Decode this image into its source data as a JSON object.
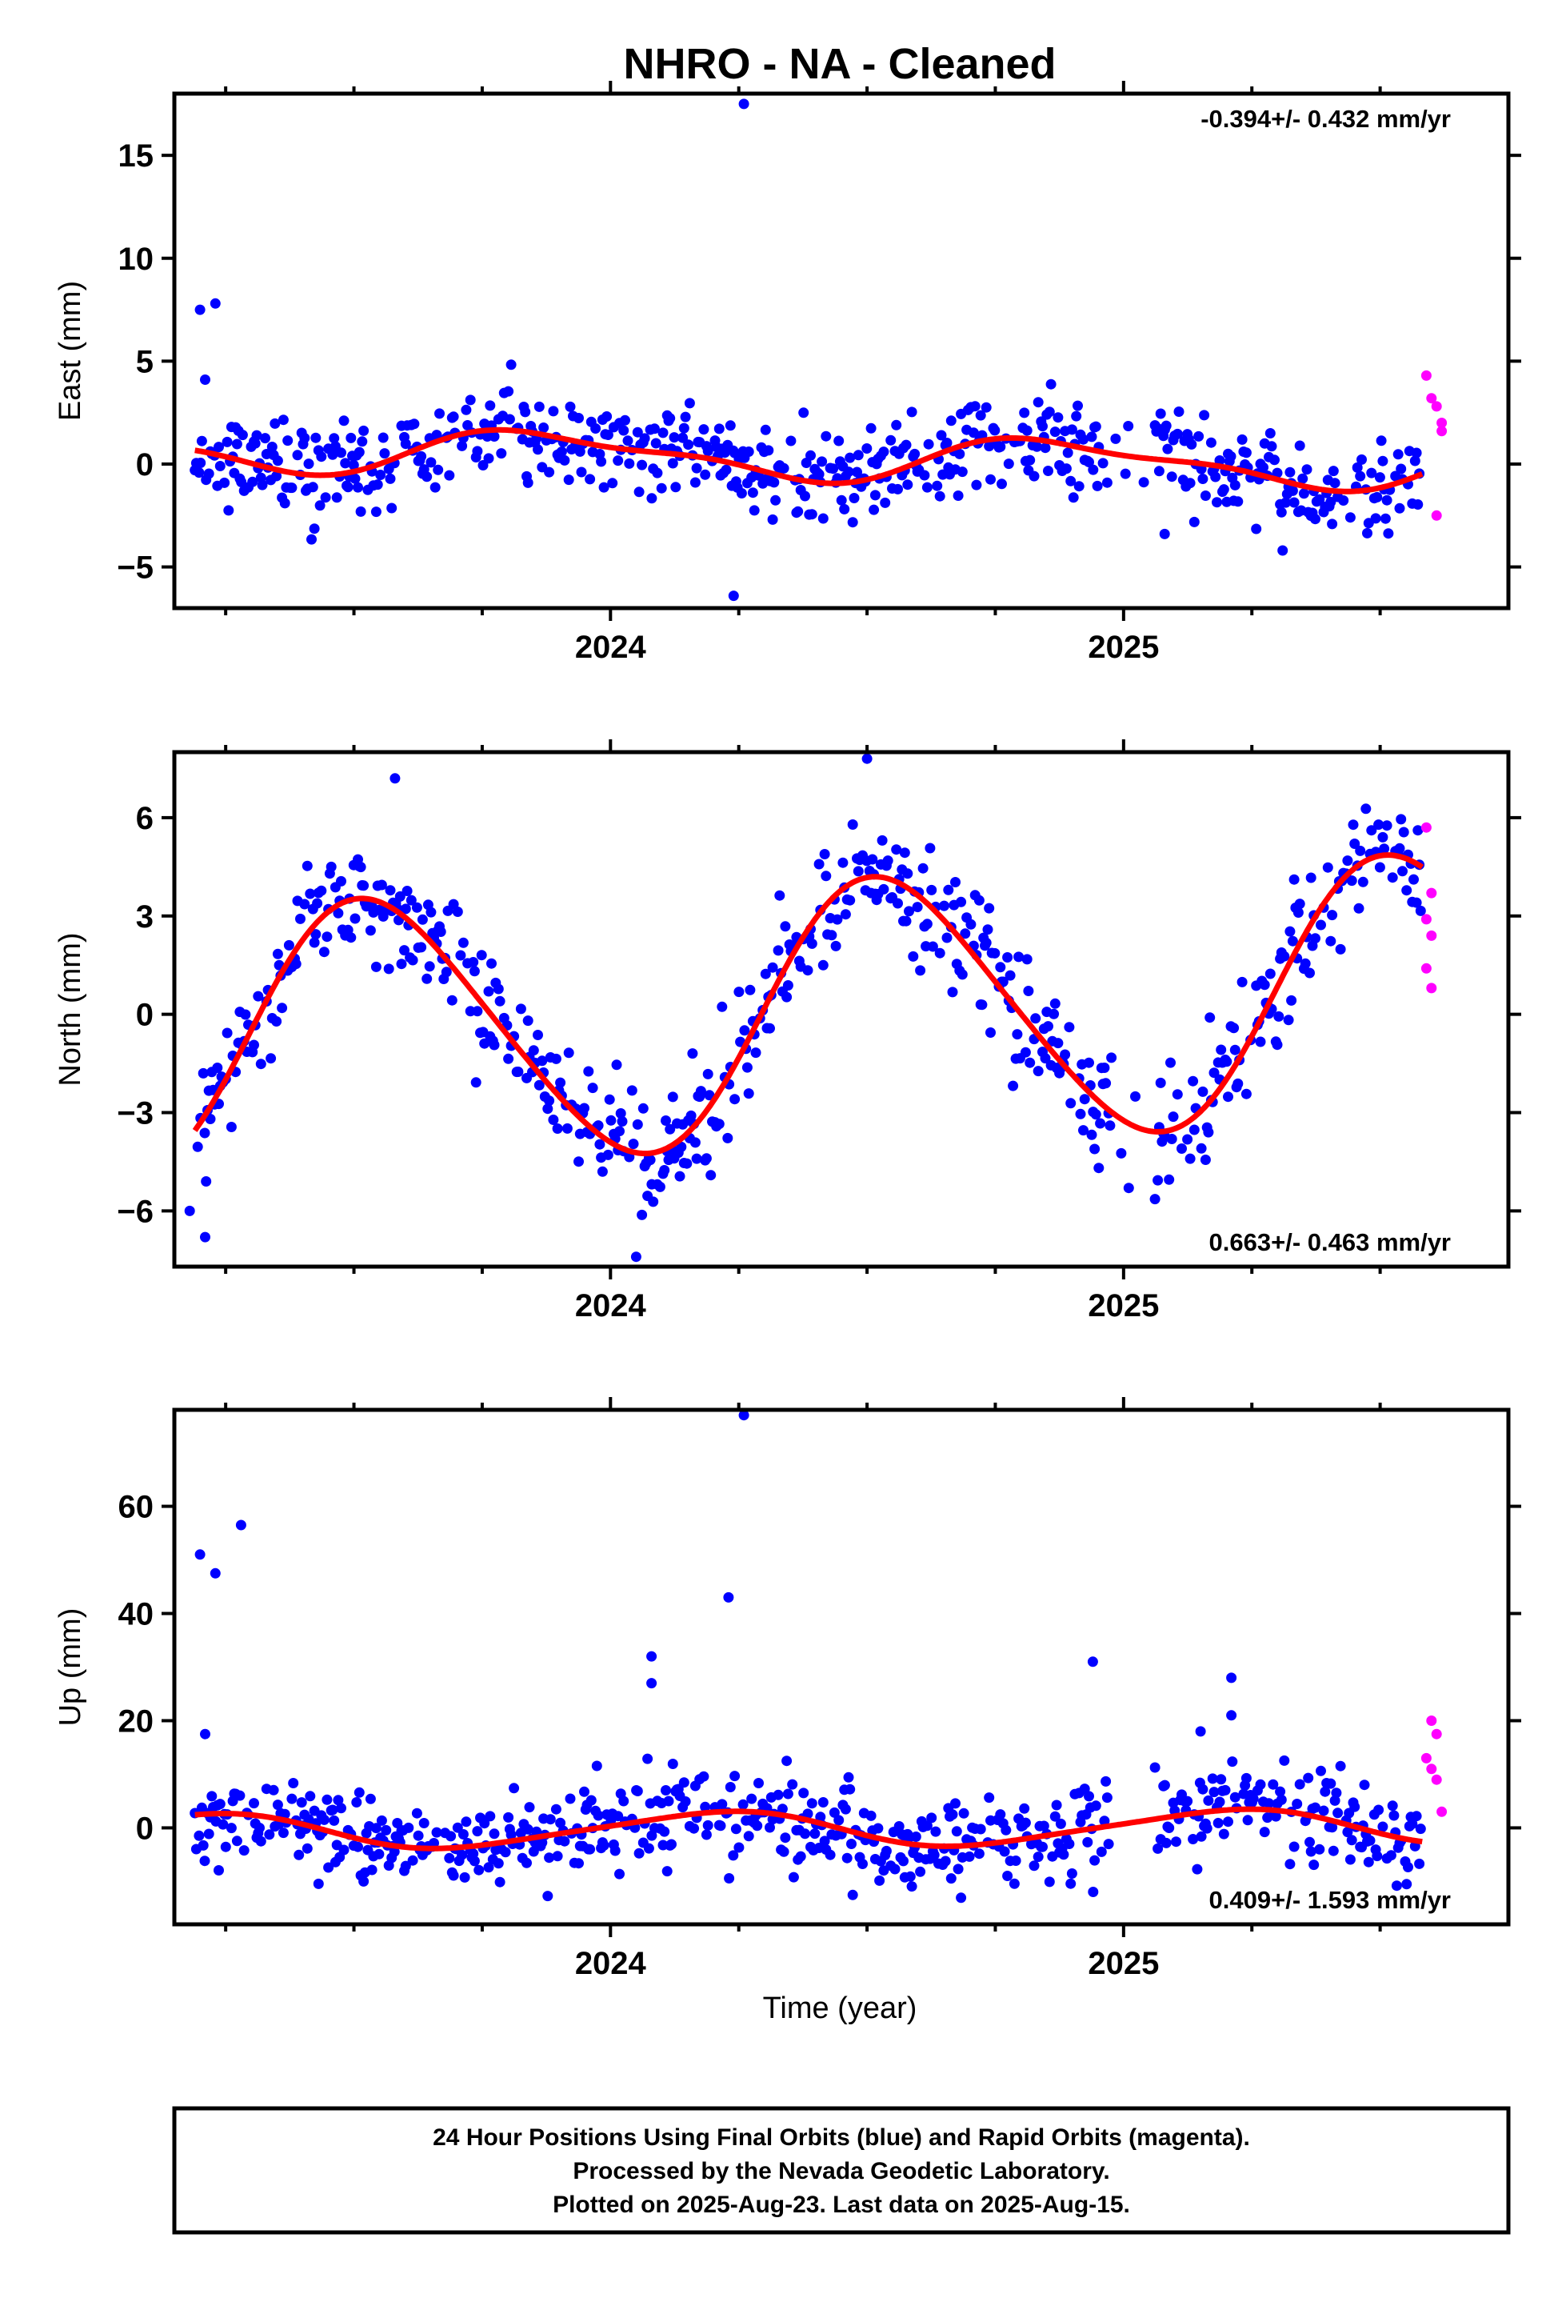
{
  "title": "NHRO  - NA - Cleaned",
  "xlabel": "Time (year)",
  "colors": {
    "final": "#0000ff",
    "rapid": "#ff00ff",
    "model": "#ff0000",
    "frame": "#000000"
  },
  "chart_data": [
    {
      "type": "scatter",
      "panel": "east",
      "ylabel": "East (mm)",
      "rate_label": "-0.394+/- 0.432 mm/yr",
      "xlim": [
        2023.15,
        2025.75
      ],
      "ylim": [
        -7,
        18
      ],
      "yticks": [
        -5,
        0,
        5,
        10,
        15
      ],
      "xticks": [
        2024,
        2025
      ],
      "xtick_labels": [
        "2024",
        "2025"
      ],
      "series": [
        {
          "role": "final-orbits",
          "seed": 11,
          "amp": 1.0,
          "phase": 0.62,
          "trend": -0.394,
          "offset": 0.3,
          "noise": 1.1,
          "outliers": [
            [
              2023.2,
              7.5
            ],
            [
              2023.23,
              7.8
            ],
            [
              2023.21,
              4.1
            ],
            [
              2024.26,
              17.5
            ],
            [
              2024.24,
              -6.4
            ],
            [
              2025.08,
              -3.4
            ],
            [
              2025.31,
              -4.2
            ]
          ]
        },
        {
          "role": "rapid-orbits",
          "points": [
            [
              2025.59,
              4.3
            ],
            [
              2025.6,
              3.2
            ],
            [
              2025.61,
              2.8
            ],
            [
              2025.62,
              2.0
            ],
            [
              2025.62,
              1.6
            ],
            [
              2025.61,
              -2.5
            ]
          ]
        }
      ],
      "model": {
        "amp": 1.0,
        "phase": 0.62,
        "trend": -0.394,
        "offset": 0.3,
        "amp2": 0.35,
        "phase2": 0.1
      }
    },
    {
      "type": "scatter",
      "panel": "north",
      "ylabel": "North (mm)",
      "rate_label": "0.663+/- 0.463 mm/yr",
      "xlim": [
        2023.15,
        2025.75
      ],
      "ylim": [
        -7.7,
        8
      ],
      "yticks": [
        -6,
        -3,
        0,
        3,
        6
      ],
      "xticks": [
        2024,
        2025
      ],
      "xtick_labels": [
        "2024",
        "2025"
      ],
      "series": [
        {
          "role": "final-orbits",
          "seed": 23,
          "amp": 4.0,
          "phase": 0.29,
          "trend": 0.663,
          "offset": 0.0,
          "noise": 0.9,
          "outliers": [
            [
              2023.21,
              -6.8
            ],
            [
              2023.18,
              -6.0
            ],
            [
              2023.58,
              7.2
            ],
            [
              2024.5,
              7.8
            ],
            [
              2024.05,
              -7.4
            ],
            [
              2025.01,
              -5.3
            ]
          ]
        },
        {
          "role": "rapid-orbits",
          "points": [
            [
              2025.59,
              5.7
            ],
            [
              2025.6,
              3.7
            ],
            [
              2025.59,
              2.9
            ],
            [
              2025.6,
              2.4
            ],
            [
              2025.59,
              1.4
            ],
            [
              2025.6,
              0.8
            ]
          ]
        }
      ],
      "model": {
        "amp": 4.0,
        "phase": 0.29,
        "trend": 0.663,
        "offset": 0.0,
        "amp2": 0.4,
        "phase2": 0.3
      }
    },
    {
      "type": "scatter",
      "panel": "up",
      "ylabel": "Up (mm)",
      "rate_label": "0.409+/- 1.593 mm/yr",
      "xlim": [
        2023.15,
        2025.75
      ],
      "ylim": [
        -18,
        78
      ],
      "yticks": [
        0,
        20,
        40,
        60
      ],
      "xticks": [
        2024,
        2025
      ],
      "xtick_labels": [
        "2024",
        "2025"
      ],
      "series": [
        {
          "role": "final-orbits",
          "seed": 37,
          "amp": 3.2,
          "phase": 0.95,
          "trend": 0.409,
          "offset": -0.2,
          "noise": 4.2,
          "outliers": [
            [
              2023.2,
              51
            ],
            [
              2023.23,
              47.5
            ],
            [
              2023.28,
              56.5
            ],
            [
              2023.21,
              17.5
            ],
            [
              2024.26,
              77
            ],
            [
              2024.23,
              43
            ],
            [
              2024.08,
              32
            ],
            [
              2024.08,
              27
            ],
            [
              2024.94,
              31
            ],
            [
              2025.21,
              28
            ],
            [
              2025.21,
              21
            ],
            [
              2025.15,
              18
            ]
          ]
        },
        {
          "role": "rapid-orbits",
          "points": [
            [
              2025.6,
              20
            ],
            [
              2025.61,
              17.5
            ],
            [
              2025.59,
              13
            ],
            [
              2025.6,
              11
            ],
            [
              2025.61,
              9
            ],
            [
              2025.62,
              3
            ]
          ]
        }
      ],
      "model": {
        "amp": 3.2,
        "phase": 0.95,
        "trend": 0.409,
        "offset": -0.2,
        "amp2": 0.5,
        "phase2": 0.2
      }
    }
  ],
  "caption": {
    "line1": "24 Hour Positions Using Final Orbits (blue) and Rapid Orbits (magenta).",
    "line2": "Processed by the Nevada Geodetic Laboratory.",
    "line3": "Plotted on 2025-Aug-23. Last data on 2025-Aug-15."
  }
}
